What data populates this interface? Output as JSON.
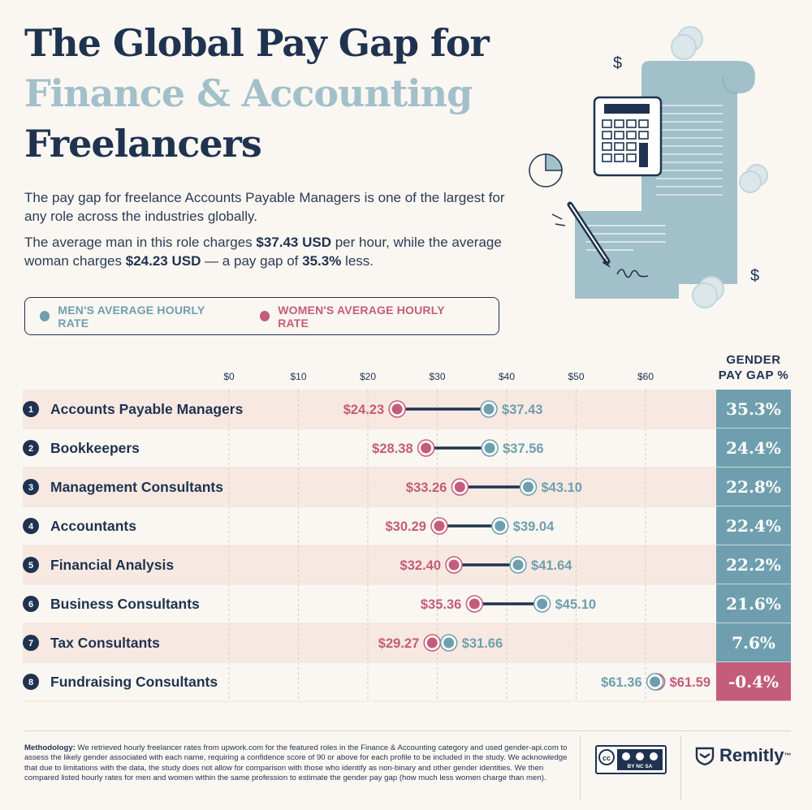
{
  "title": {
    "line1": "The Global Pay Gap for",
    "line2": "Finance & Accounting",
    "line3": "Freelancers"
  },
  "intro": {
    "p1": "The pay gap for freelance Accounts Payable Managers is one of the largest for any role across the industries globally.",
    "p2_a": "The average man in this role charges ",
    "p2_b": "$37.43 USD",
    "p2_c": " per hour, while the average woman charges ",
    "p2_d": "$24.23 USD",
    "p2_e": " — a pay gap of ",
    "p2_f": "35.3%",
    "p2_g": " less."
  },
  "legend": {
    "men": "MEN'S AVERAGE HOURLY RATE",
    "women": "WOMEN'S AVERAGE HOURLY RATE"
  },
  "gap_header": {
    "line1": "GENDER",
    "line2": "PAY GAP %"
  },
  "colors": {
    "men": "#6f9fae",
    "women": "#c45c7b",
    "navy": "#1f3350",
    "gap_positive": "#6f9fae",
    "gap_negative": "#c45c7b",
    "row_alt": "#f7e9e2"
  },
  "chart_data": {
    "type": "dumbbell",
    "x_ticks": [
      "$0",
      "$10",
      "$20",
      "$30",
      "$40",
      "$50",
      "$60"
    ],
    "xlim": [
      0,
      70
    ],
    "series": [
      {
        "name": "MEN'S AVERAGE HOURLY RATE",
        "values": [
          37.43,
          37.56,
          43.1,
          39.04,
          41.64,
          45.1,
          31.66,
          61.36
        ]
      },
      {
        "name": "WOMEN'S AVERAGE HOURLY RATE",
        "values": [
          24.23,
          28.38,
          33.26,
          30.29,
          32.4,
          35.36,
          29.27,
          61.59
        ]
      }
    ],
    "rows": [
      {
        "rank": "1",
        "role": "Accounts Payable Managers",
        "men": 37.43,
        "women": 24.23,
        "men_label": "$37.43",
        "women_label": "$24.23",
        "gap": "35.3%",
        "gap_value": 35.3
      },
      {
        "rank": "2",
        "role": "Bookkeepers",
        "men": 37.56,
        "women": 28.38,
        "men_label": "$37.56",
        "women_label": "$28.38",
        "gap": "24.4%",
        "gap_value": 24.4
      },
      {
        "rank": "3",
        "role": "Management Consultants",
        "men": 43.1,
        "women": 33.26,
        "men_label": "$43.10",
        "women_label": "$33.26",
        "gap": "22.8%",
        "gap_value": 22.8
      },
      {
        "rank": "4",
        "role": "Accountants",
        "men": 39.04,
        "women": 30.29,
        "men_label": "$39.04",
        "women_label": "$30.29",
        "gap": "22.4%",
        "gap_value": 22.4
      },
      {
        "rank": "5",
        "role": "Financial Analysis",
        "men": 41.64,
        "women": 32.4,
        "men_label": "$41.64",
        "women_label": "$32.40",
        "gap": "22.2%",
        "gap_value": 22.2
      },
      {
        "rank": "6",
        "role": "Business Consultants",
        "men": 45.1,
        "women": 35.36,
        "men_label": "$45.10",
        "women_label": "$35.36",
        "gap": "21.6%",
        "gap_value": 21.6
      },
      {
        "rank": "7",
        "role": "Tax Consultants",
        "men": 31.66,
        "women": 29.27,
        "men_label": "$31.66",
        "women_label": "$29.27",
        "gap": "7.6%",
        "gap_value": 7.6
      },
      {
        "rank": "8",
        "role": "Fundraising Consultants",
        "men": 61.36,
        "women": 61.59,
        "men_label": "$61.36",
        "women_label": "$61.59",
        "gap": "-0.4%",
        "gap_value": -0.4
      }
    ]
  },
  "footer": {
    "method_label": "Methodology:",
    "method_text": " We retrieved hourly freelancer rates from upwork.com for the featured roles in the Finance & Accounting category and used gender-api.com to assess the likely gender associated with each name, requiring a confidence score of 90 or above for each profile to be included in the study. We acknowledge that due to limitations with the data, the study does not allow for comparison with those who identify as non-binary and other gender identities. We then compared listed hourly rates for men and women within the same profession to estimate the gender pay gap (how much less women charge than men).",
    "license": "BY  NC  SA",
    "brand": "Remitly",
    "brand_tm": "™"
  },
  "illustration": {
    "icons": [
      "receipt-icon",
      "calculator-icon",
      "pen-icon",
      "pie-chart-icon",
      "coin-icon",
      "dollar-sign-icon"
    ],
    "dollar": "$"
  }
}
